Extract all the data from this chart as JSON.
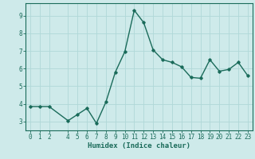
{
  "x": [
    0,
    1,
    2,
    4,
    5,
    6,
    7,
    8,
    9,
    10,
    11,
    12,
    13,
    14,
    15,
    16,
    17,
    18,
    19,
    20,
    21,
    22,
    23
  ],
  "y": [
    3.85,
    3.85,
    3.85,
    3.05,
    3.4,
    3.75,
    2.9,
    4.1,
    5.8,
    6.95,
    9.3,
    8.6,
    7.05,
    6.5,
    6.35,
    6.1,
    5.5,
    5.45,
    6.5,
    5.85,
    5.95,
    6.35,
    5.6
  ],
  "line_color": "#1a6b5a",
  "marker": "D",
  "marker_size": 1.8,
  "bg_color": "#ceeaea",
  "grid_color": "#b0d8d8",
  "xlabel": "Humidex (Indice chaleur)",
  "xlim": [
    -0.5,
    23.5
  ],
  "ylim": [
    2.5,
    9.7
  ],
  "yticks": [
    3,
    4,
    5,
    6,
    7,
    8,
    9
  ],
  "xticks": [
    0,
    1,
    2,
    4,
    5,
    6,
    7,
    8,
    9,
    10,
    11,
    12,
    13,
    14,
    15,
    16,
    17,
    18,
    19,
    20,
    21,
    22,
    23
  ],
  "tick_color": "#1a6b5a",
  "label_fontsize": 6.5,
  "tick_fontsize": 5.5,
  "line_width": 1.0,
  "spine_color": "#1a6b5a"
}
